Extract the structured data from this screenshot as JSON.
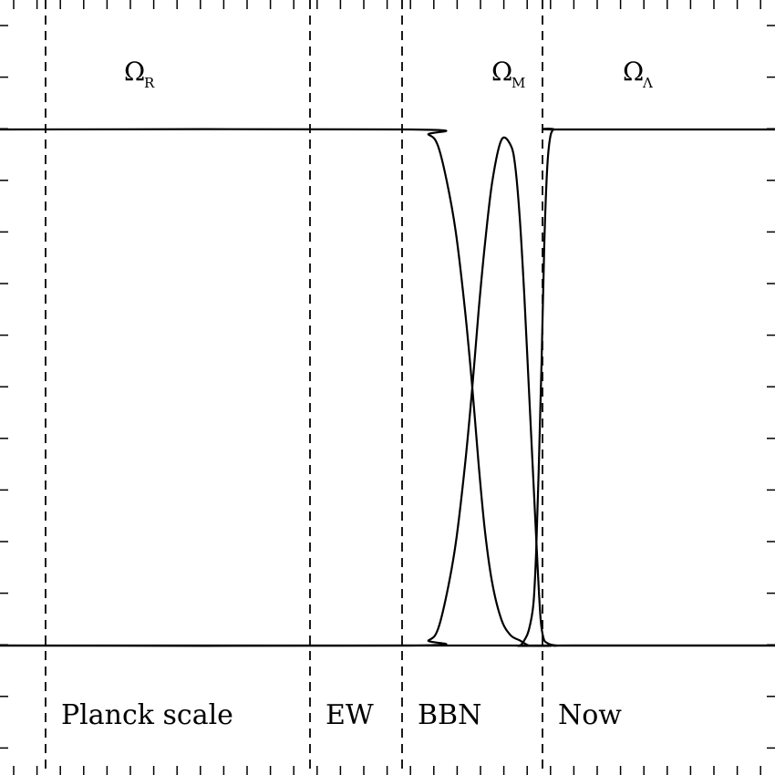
{
  "chart_data": {
    "type": "line",
    "title": "",
    "xlabel": "",
    "ylabel": "",
    "xlim": [
      0,
      850
    ],
    "ylim": [
      0,
      1
    ],
    "grid": false,
    "series": [
      {
        "name": "Ω_R",
        "x": [
          0,
          450,
          470,
          480,
          490,
          500,
          510,
          518,
          525,
          532,
          540,
          550,
          560,
          570,
          580,
          590,
          850
        ],
        "y": [
          1.0,
          1.0,
          0.99,
          0.97,
          0.9,
          0.8,
          0.65,
          0.5,
          0.35,
          0.22,
          0.12,
          0.05,
          0.02,
          0.01,
          0.0,
          0.0,
          0.0
        ]
      },
      {
        "name": "Ω_M",
        "x": [
          0,
          450,
          470,
          480,
          490,
          500,
          510,
          518,
          525,
          532,
          540,
          550,
          560,
          565,
          570,
          575,
          580,
          585,
          590,
          593,
          596,
          600,
          610,
          630,
          850
        ],
        "y": [
          0.0,
          0.0,
          0.01,
          0.03,
          0.1,
          0.2,
          0.35,
          0.5,
          0.65,
          0.78,
          0.9,
          0.98,
          0.97,
          0.93,
          0.83,
          0.68,
          0.5,
          0.32,
          0.14,
          0.05,
          0.015,
          0.005,
          0.0,
          0.0,
          0.0
        ]
      },
      {
        "name": "Ω_Λ",
        "x": [
          0,
          560,
          570,
          575,
          580,
          585,
          588,
          591,
          594,
          597,
          600,
          603,
          607,
          615,
          850
        ],
        "y": [
          0.0,
          0.0,
          0.0,
          0.01,
          0.03,
          0.08,
          0.18,
          0.35,
          0.55,
          0.78,
          0.92,
          0.98,
          1.0,
          1.0,
          1.0
        ]
      }
    ],
    "vertical_markers": [
      50,
      340,
      441,
      595
    ],
    "series_labels": [
      {
        "main": "Ω",
        "sub": "R",
        "x": 150
      },
      {
        "main": "Ω",
        "sub": "M",
        "x": 553
      },
      {
        "main": "Ω",
        "sub": "Λ",
        "x": 697
      }
    ],
    "era_labels": [
      {
        "text": "Planck scale",
        "x": 67
      },
      {
        "text": "EW",
        "x": 357
      },
      {
        "text": "BBN",
        "x": 458
      },
      {
        "text": "Now",
        "x": 612
      }
    ]
  }
}
